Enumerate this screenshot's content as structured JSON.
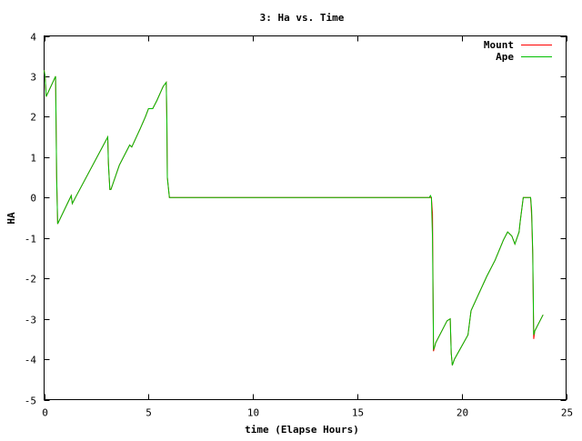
{
  "chart_data": {
    "type": "line",
    "title": "3: Ha vs. Time",
    "xlabel": "time (Elapse Hours)",
    "ylabel": "HA",
    "xlim": [
      0,
      25
    ],
    "ylim": [
      -5,
      4
    ],
    "xticks": [
      0,
      5,
      10,
      15,
      20,
      25
    ],
    "yticks": [
      -5,
      -4,
      -3,
      -2,
      -1,
      0,
      1,
      2,
      3,
      4
    ],
    "grid": false,
    "legend_position": "top-right",
    "series": [
      {
        "name": "Mount",
        "color": "#ff0000",
        "x": [
          0,
          0.05,
          0.1,
          0.55,
          0.57,
          0.6,
          0.65,
          1.3,
          1.35,
          1.5,
          3.05,
          3.08,
          3.15,
          3.2,
          3.6,
          4.1,
          4.2,
          4.6,
          4.85,
          5.0,
          5.2,
          5.4,
          5.7,
          5.85,
          5.88,
          5.9,
          6.0,
          10.0,
          15.0,
          18.45,
          18.5,
          18.55,
          18.6,
          18.65,
          18.7,
          18.75,
          19.3,
          19.45,
          19.5,
          19.55,
          19.65,
          20.3,
          20.45,
          20.8,
          21.2,
          21.6,
          22.0,
          22.2,
          22.4,
          22.55,
          22.75,
          22.8,
          22.95,
          23.3,
          23.35,
          23.4,
          23.45,
          23.5,
          23.9
        ],
        "y": [
          3.15,
          3.0,
          2.5,
          3.0,
          2.0,
          0.5,
          -0.65,
          0.05,
          -0.15,
          0.0,
          1.5,
          0.85,
          0.2,
          0.2,
          0.8,
          1.3,
          1.25,
          1.7,
          2.0,
          2.2,
          2.2,
          2.4,
          2.75,
          2.85,
          1.9,
          0.5,
          0.0,
          0.0,
          0.0,
          0.0,
          0.0,
          0.0,
          -0.4,
          -3.8,
          -3.7,
          -3.6,
          -3.05,
          -3.0,
          -3.85,
          -4.15,
          -4.0,
          -3.4,
          -2.8,
          -2.4,
          -1.95,
          -1.55,
          -1.05,
          -0.85,
          -0.95,
          -1.15,
          -0.85,
          -0.6,
          0.0,
          0.0,
          -0.45,
          -1.4,
          -3.5,
          -3.3,
          -2.9
        ]
      },
      {
        "name": "Ape",
        "color": "#00c000",
        "x": [
          0,
          0.05,
          0.1,
          0.55,
          0.57,
          0.6,
          0.65,
          1.3,
          1.35,
          1.5,
          3.05,
          3.08,
          3.15,
          3.2,
          3.6,
          4.1,
          4.2,
          4.6,
          4.85,
          5.0,
          5.2,
          5.4,
          5.7,
          5.85,
          5.88,
          5.9,
          6.0,
          10.0,
          15.0,
          18.45,
          18.5,
          18.55,
          18.6,
          18.65,
          18.7,
          18.75,
          19.3,
          19.45,
          19.5,
          19.55,
          19.65,
          20.3,
          20.45,
          20.8,
          21.2,
          21.6,
          22.0,
          22.2,
          22.4,
          22.55,
          22.75,
          22.8,
          22.95,
          23.3,
          23.35,
          23.4,
          23.45,
          23.5,
          23.9
        ],
        "y": [
          3.15,
          3.0,
          2.5,
          3.0,
          2.0,
          0.5,
          -0.65,
          0.05,
          -0.15,
          0.0,
          1.5,
          0.85,
          0.2,
          0.2,
          0.8,
          1.3,
          1.25,
          1.7,
          2.0,
          2.2,
          2.2,
          2.4,
          2.75,
          2.85,
          1.9,
          0.5,
          0.0,
          0.0,
          0.0,
          0.0,
          0.05,
          0.0,
          -1.0,
          -3.75,
          -3.7,
          -3.6,
          -3.05,
          -3.0,
          -3.85,
          -4.15,
          -4.0,
          -3.4,
          -2.8,
          -2.4,
          -1.95,
          -1.55,
          -1.05,
          -0.85,
          -0.95,
          -1.15,
          -0.85,
          -0.6,
          0.0,
          0.0,
          -0.3,
          -1.3,
          -3.4,
          -3.3,
          -2.9
        ]
      }
    ]
  }
}
